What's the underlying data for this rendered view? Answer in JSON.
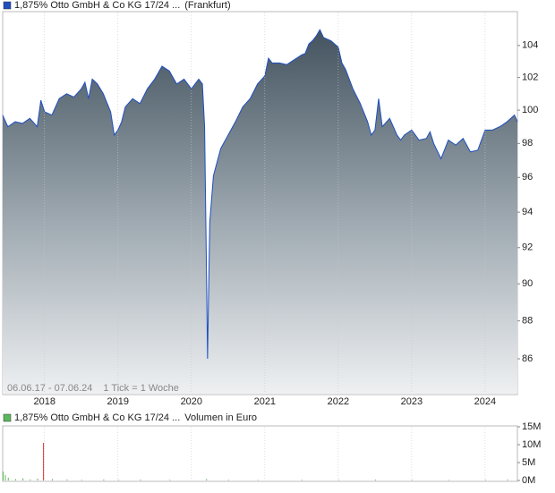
{
  "chart_data": [
    {
      "type": "area",
      "log": true,
      "grid": "x",
      "series": [
        {
          "name": "1,875% Otto GmbH & Co KG 17/24 ...",
          "color": "#1f4fbf",
          "values": [
            99.7,
            99.0,
            99.3,
            99.2,
            99.5,
            99.0,
            100.6,
            99.9,
            99.7,
            100.7,
            101.0,
            100.8,
            101.3,
            101.7,
            100.7,
            101.9,
            101.6,
            101.0,
            99.9,
            98.5,
            98.8,
            99.3,
            100.2,
            100.7,
            100.4,
            101.3,
            101.9,
            102.7,
            102.4,
            101.6,
            101.9,
            101.3,
            101.9,
            101.6,
            99.0,
            92.4,
            86.0,
            93.4,
            96.1,
            96.9,
            97.7,
            98.5,
            99.3,
            100.2,
            100.7,
            101.6,
            102.1,
            103.2,
            102.9,
            102.9,
            102.8,
            103.1,
            103.4,
            103.5,
            104.1,
            104.3,
            104.6,
            105.0,
            104.5,
            104.3,
            103.9,
            102.9,
            102.5,
            101.3,
            100.4,
            99.3,
            98.5,
            98.8,
            100.7,
            99.0,
            99.5,
            98.5,
            98.2,
            98.5,
            98.8,
            98.2,
            98.3,
            98.7,
            98.0,
            97.1,
            98.2,
            97.9,
            98.3,
            97.5,
            97.6,
            98.8,
            98.8,
            99.0,
            99.3,
            99.7,
            99.3
          ]
        }
      ],
      "x": [
        2017.43,
        2017.5,
        2017.6,
        2017.7,
        2017.8,
        2017.9,
        2017.95,
        2018.0,
        2018.1,
        2018.2,
        2018.3,
        2018.4,
        2018.5,
        2018.55,
        2018.6,
        2018.65,
        2018.72,
        2018.8,
        2018.9,
        2018.95,
        2019.0,
        2019.05,
        2019.1,
        2019.2,
        2019.3,
        2019.4,
        2019.5,
        2019.6,
        2019.7,
        2019.8,
        2019.9,
        2020.0,
        2020.1,
        2020.15,
        2020.18,
        2020.2,
        2020.22,
        2020.25,
        2020.3,
        2020.35,
        2020.4,
        2020.5,
        2020.6,
        2020.7,
        2020.8,
        2020.9,
        2021.0,
        2021.05,
        2021.1,
        2021.2,
        2021.3,
        2021.4,
        2021.5,
        2021.55,
        2021.6,
        2021.65,
        2021.7,
        2021.75,
        2021.8,
        2021.9,
        2022.0,
        2022.05,
        2022.1,
        2022.2,
        2022.3,
        2022.4,
        2022.45,
        2022.5,
        2022.55,
        2022.6,
        2022.7,
        2022.8,
        2022.85,
        2022.9,
        2023.0,
        2023.1,
        2023.2,
        2023.25,
        2023.3,
        2023.4,
        2023.5,
        2023.6,
        2023.7,
        2023.8,
        2023.9,
        2024.0,
        2024.1,
        2024.2,
        2024.3,
        2024.4,
        2024.44
      ],
      "xlim": [
        2017.43,
        2024.44
      ],
      "xticks": [
        2018,
        2019,
        2020,
        2021,
        2022,
        2023,
        2024
      ],
      "ylim": [
        84.2,
        106.1
      ],
      "yticks": [
        86,
        88,
        90,
        92,
        94,
        96,
        98,
        100,
        102,
        104
      ],
      "exchange": "(Frankfurt)",
      "period": "06.06.17 - 07.06.24",
      "tick_note": "1 Tick = 1 Woche"
    },
    {
      "type": "bar",
      "grid": "x",
      "series": [
        {
          "name": "1,875% Otto GmbH & Co KG 17/24 ...",
          "color": "#5cb85c",
          "colors": [
            "#5cb85c",
            "#5cb85c",
            "#5cb85c",
            "#5cb85c",
            "#5cb85c",
            "#5cb85c",
            "#5cb85c",
            "#e03030",
            "#5cb85c",
            "#5cb85c",
            "#5cb85c",
            "#5cb85c",
            "#5cb85c",
            "#5cb85c",
            "#5cb85c",
            "#5cb85c",
            "#5cb85c",
            "#5cb85c",
            "#5cb85c",
            "#5cb85c",
            "#5cb85c",
            "#5cb85c",
            "#5cb85c",
            "#5cb85c",
            "#5cb85c"
          ],
          "values": [
            2500000,
            1500000,
            800000,
            400000,
            600000,
            300000,
            500000,
            10500000,
            400000,
            300000,
            200000,
            300000,
            200000,
            250000,
            200000,
            400000,
            200000,
            150000,
            200000,
            150000,
            250000,
            200000,
            150000,
            200000,
            300000
          ]
        }
      ],
      "x": [
        2017.43,
        2017.46,
        2017.5,
        2017.6,
        2017.7,
        2017.8,
        2017.9,
        2017.98,
        2018.1,
        2018.3,
        2018.5,
        2018.8,
        2019.0,
        2019.3,
        2019.7,
        2020.2,
        2020.5,
        2020.9,
        2021.5,
        2022.0,
        2022.5,
        2023.0,
        2023.5,
        2024.0,
        2024.3
      ],
      "xlim": [
        2017.43,
        2024.44
      ],
      "xticks": [
        2018,
        2019,
        2020,
        2021,
        2022,
        2023,
        2024
      ],
      "ylim": [
        0,
        15000000
      ],
      "yticks": [
        {
          "value": 0,
          "label": "0M"
        },
        {
          "value": 5000000,
          "label": "5M"
        },
        {
          "value": 10000000,
          "label": "10M"
        },
        {
          "value": 15000000,
          "label": "15M"
        }
      ],
      "label": "Volumen in Euro"
    }
  ]
}
